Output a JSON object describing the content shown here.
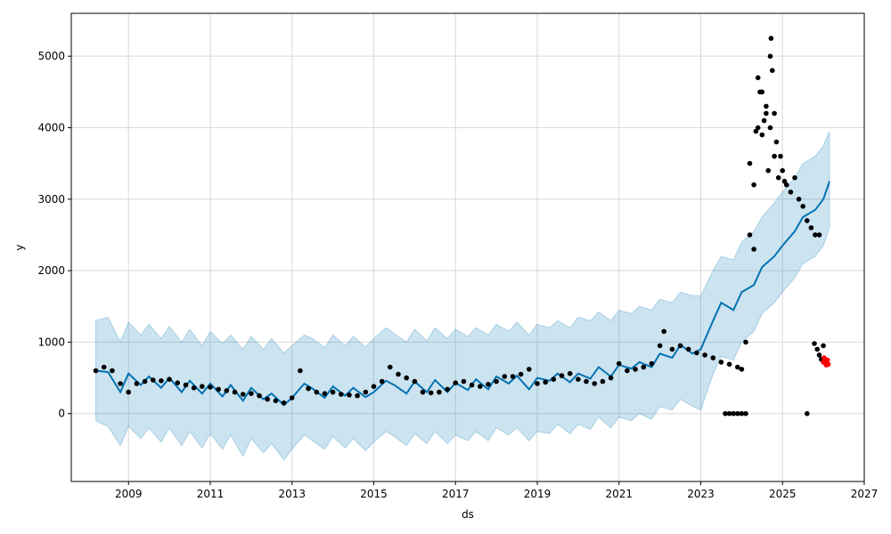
{
  "chart_data": {
    "type": "line",
    "title": "",
    "xlabel": "ds",
    "ylabel": "y",
    "xlim": [
      2007.6,
      2027.0
    ],
    "ylim": [
      -950,
      5600
    ],
    "grid": true,
    "x_ticks": [
      2009,
      2011,
      2013,
      2015,
      2017,
      2019,
      2021,
      2023,
      2025,
      2027
    ],
    "x_tick_labels": [
      "2009",
      "2011",
      "2013",
      "2015",
      "2017",
      "2019",
      "2021",
      "2023",
      "2025",
      "2027"
    ],
    "y_ticks": [
      0,
      1000,
      2000,
      3000,
      4000,
      5000
    ],
    "y_tick_labels": [
      "0",
      "1000",
      "2000",
      "3000",
      "4000",
      "5000"
    ],
    "colors": {
      "forecast": "#0072B2",
      "interval": "#0072B2",
      "observed": "#000000",
      "highlight": "#ff0000",
      "grid": "#d9d9d9"
    },
    "series": [
      {
        "role": "forecast",
        "x": [
          2008.2,
          2008.5,
          2008.8,
          2009.0,
          2009.3,
          2009.5,
          2009.8,
          2010.0,
          2010.3,
          2010.5,
          2010.8,
          2011.0,
          2011.3,
          2011.5,
          2011.8,
          2012.0,
          2012.3,
          2012.5,
          2012.8,
          2013.0,
          2013.3,
          2013.5,
          2013.8,
          2014.0,
          2014.3,
          2014.5,
          2014.8,
          2015.0,
          2015.3,
          2015.5,
          2015.8,
          2016.0,
          2016.3,
          2016.5,
          2016.8,
          2017.0,
          2017.3,
          2017.5,
          2017.8,
          2018.0,
          2018.3,
          2018.5,
          2018.8,
          2019.0,
          2019.3,
          2019.5,
          2019.8,
          2020.0,
          2020.3,
          2020.5,
          2020.8,
          2021.0,
          2021.3,
          2021.5,
          2021.8,
          2022.0,
          2022.3,
          2022.5,
          2022.8,
          2023.0,
          2023.3,
          2023.5,
          2023.8,
          2024.0,
          2024.3,
          2024.5,
          2024.8,
          2025.0,
          2025.3,
          2025.5,
          2025.8,
          2026.0,
          2026.15
        ],
        "y": [
          600,
          580,
          300,
          560,
          400,
          520,
          360,
          500,
          300,
          460,
          280,
          420,
          240,
          400,
          180,
          360,
          200,
          280,
          120,
          220,
          420,
          350,
          220,
          380,
          250,
          360,
          230,
          300,
          460,
          400,
          280,
          450,
          300,
          470,
          300,
          430,
          330,
          480,
          340,
          520,
          420,
          530,
          340,
          500,
          460,
          560,
          440,
          560,
          490,
          650,
          520,
          680,
          630,
          720,
          650,
          840,
          780,
          960,
          840,
          900,
          1300,
          1550,
          1450,
          1700,
          1800,
          2050,
          2200,
          2350,
          2550,
          2750,
          2850,
          3000,
          3250
        ]
      },
      {
        "role": "interval-upper",
        "x": [
          2008.2,
          2008.5,
          2008.8,
          2009.0,
          2009.3,
          2009.5,
          2009.8,
          2010.0,
          2010.3,
          2010.5,
          2010.8,
          2011.0,
          2011.3,
          2011.5,
          2011.8,
          2012.0,
          2012.3,
          2012.5,
          2012.8,
          2013.0,
          2013.3,
          2013.5,
          2013.8,
          2014.0,
          2014.3,
          2014.5,
          2014.8,
          2015.0,
          2015.3,
          2015.5,
          2015.8,
          2016.0,
          2016.3,
          2016.5,
          2016.8,
          2017.0,
          2017.3,
          2017.5,
          2017.8,
          2018.0,
          2018.3,
          2018.5,
          2018.8,
          2019.0,
          2019.3,
          2019.5,
          2019.8,
          2020.0,
          2020.3,
          2020.5,
          2020.8,
          2021.0,
          2021.3,
          2021.5,
          2021.8,
          2022.0,
          2022.3,
          2022.5,
          2022.8,
          2023.0,
          2023.3,
          2023.5,
          2023.8,
          2024.0,
          2024.3,
          2024.5,
          2024.8,
          2025.0,
          2025.3,
          2025.5,
          2025.8,
          2026.0,
          2026.15
        ],
        "y": [
          1300,
          1350,
          1000,
          1280,
          1100,
          1250,
          1050,
          1220,
          1000,
          1180,
          950,
          1150,
          980,
          1100,
          900,
          1080,
          900,
          1050,
          850,
          950,
          1100,
          1050,
          920,
          1100,
          950,
          1080,
          930,
          1050,
          1200,
          1120,
          1000,
          1180,
          1020,
          1200,
          1050,
          1180,
          1080,
          1200,
          1100,
          1250,
          1150,
          1280,
          1100,
          1250,
          1200,
          1300,
          1200,
          1350,
          1300,
          1420,
          1300,
          1450,
          1400,
          1500,
          1450,
          1600,
          1550,
          1700,
          1650,
          1650,
          2000,
          2200,
          2150,
          2400,
          2550,
          2750,
          2950,
          3100,
          3300,
          3500,
          3600,
          3750,
          3950
        ]
      },
      {
        "role": "interval-lower",
        "x": [
          2008.2,
          2008.5,
          2008.8,
          2009.0,
          2009.3,
          2009.5,
          2009.8,
          2010.0,
          2010.3,
          2010.5,
          2010.8,
          2011.0,
          2011.3,
          2011.5,
          2011.8,
          2012.0,
          2012.3,
          2012.5,
          2012.8,
          2013.0,
          2013.3,
          2013.5,
          2013.8,
          2014.0,
          2014.3,
          2014.5,
          2014.8,
          2015.0,
          2015.3,
          2015.5,
          2015.8,
          2016.0,
          2016.3,
          2016.5,
          2016.8,
          2017.0,
          2017.3,
          2017.5,
          2017.8,
          2018.0,
          2018.3,
          2018.5,
          2018.8,
          2019.0,
          2019.3,
          2019.5,
          2019.8,
          2020.0,
          2020.3,
          2020.5,
          2020.8,
          2021.0,
          2021.3,
          2021.5,
          2021.8,
          2022.0,
          2022.3,
          2022.5,
          2022.8,
          2023.0,
          2023.3,
          2023.5,
          2023.8,
          2024.0,
          2024.3,
          2024.5,
          2024.8,
          2025.0,
          2025.3,
          2025.5,
          2025.8,
          2026.0,
          2026.15
        ],
        "y": [
          -100,
          -180,
          -450,
          -180,
          -350,
          -200,
          -400,
          -200,
          -450,
          -250,
          -480,
          -280,
          -500,
          -300,
          -600,
          -350,
          -550,
          -420,
          -650,
          -500,
          -300,
          -380,
          -500,
          -320,
          -480,
          -350,
          -520,
          -400,
          -250,
          -320,
          -450,
          -280,
          -420,
          -250,
          -420,
          -300,
          -380,
          -250,
          -380,
          -200,
          -300,
          -200,
          -380,
          -250,
          -280,
          -150,
          -280,
          -150,
          -220,
          -50,
          -200,
          -50,
          -100,
          0,
          -80,
          100,
          50,
          200,
          100,
          50,
          550,
          800,
          750,
          1000,
          1150,
          1400,
          1550,
          1700,
          1900,
          2100,
          2200,
          2350,
          2600
        ]
      },
      {
        "role": "observed",
        "x": [
          2008.2,
          2008.4,
          2008.6,
          2008.8,
          2009.0,
          2009.2,
          2009.4,
          2009.6,
          2009.8,
          2010.0,
          2010.2,
          2010.4,
          2010.6,
          2010.8,
          2011.0,
          2011.2,
          2011.4,
          2011.6,
          2011.8,
          2012.0,
          2012.2,
          2012.4,
          2012.6,
          2012.8,
          2013.0,
          2013.2,
          2013.4,
          2013.6,
          2013.8,
          2014.0,
          2014.2,
          2014.4,
          2014.6,
          2014.8,
          2015.0,
          2015.2,
          2015.4,
          2015.6,
          2015.8,
          2016.0,
          2016.2,
          2016.4,
          2016.6,
          2016.8,
          2017.0,
          2017.2,
          2017.4,
          2017.6,
          2017.8,
          2018.0,
          2018.2,
          2018.4,
          2018.6,
          2018.8,
          2019.0,
          2019.2,
          2019.4,
          2019.6,
          2019.8,
          2020.0,
          2020.2,
          2020.4,
          2020.6,
          2020.8,
          2021.0,
          2021.2,
          2021.4,
          2021.6,
          2021.8,
          2022.0,
          2022.1,
          2022.3,
          2022.5,
          2022.7,
          2022.9,
          2023.1,
          2023.3,
          2023.5,
          2023.7,
          2023.9,
          2024.0,
          2024.1,
          2024.2,
          2024.3,
          2024.4,
          2024.5,
          2024.6,
          2024.7,
          2024.8,
          2024.9,
          2025.0,
          2025.1,
          2025.2,
          2025.3,
          2025.4,
          2025.5,
          2025.6,
          2025.7,
          2025.8,
          2025.9,
          2026.0
        ],
        "y": [
          600,
          650,
          600,
          420,
          300,
          420,
          450,
          470,
          460,
          480,
          430,
          400,
          360,
          380,
          370,
          340,
          320,
          300,
          270,
          280,
          250,
          200,
          180,
          150,
          220,
          600,
          350,
          300,
          280,
          300,
          270,
          260,
          250,
          300,
          380,
          450,
          650,
          550,
          500,
          450,
          300,
          290,
          300,
          340,
          430,
          450,
          400,
          380,
          410,
          450,
          520,
          520,
          550,
          620,
          420,
          440,
          480,
          530,
          560,
          480,
          450,
          420,
          450,
          500,
          700,
          600,
          620,
          650,
          700,
          950,
          1150,
          900,
          950,
          900,
          850,
          820,
          780,
          720,
          690,
          650,
          620,
          1000,
          2500,
          3200,
          4000,
          4500,
          4300,
          4000,
          3600,
          3300,
          3400,
          3200,
          3100,
          3300,
          3000,
          2900,
          2700,
          2600,
          2500,
          2500,
          950
        ]
      }
    ],
    "observed_extra": {
      "x": [
        2023.6,
        2023.7,
        2023.8,
        2023.9,
        2024.0,
        2024.1,
        2025.6,
        2025.78,
        2025.85,
        2025.9,
        2025.95,
        2024.35,
        2024.4,
        2024.45,
        2024.5,
        2024.55,
        2024.6,
        2024.65,
        2024.7,
        2024.72,
        2024.75,
        2024.8,
        2024.85,
        2024.3,
        2024.2,
        2024.95,
        2025.05
      ],
      "y": [
        0,
        0,
        0,
        0,
        0,
        0,
        0,
        980,
        900,
        820,
        760,
        3950,
        4700,
        4500,
        3900,
        4100,
        4200,
        3400,
        5000,
        5250,
        4800,
        4200,
        3800,
        2300,
        3500,
        3600,
        3250
      ]
    },
    "highlight_points": {
      "x": [
        2026.0,
        2026.02,
        2026.05,
        2026.07,
        2026.1,
        2026.12
      ],
      "y": [
        720,
        780,
        700,
        680,
        750,
        690
      ]
    }
  }
}
